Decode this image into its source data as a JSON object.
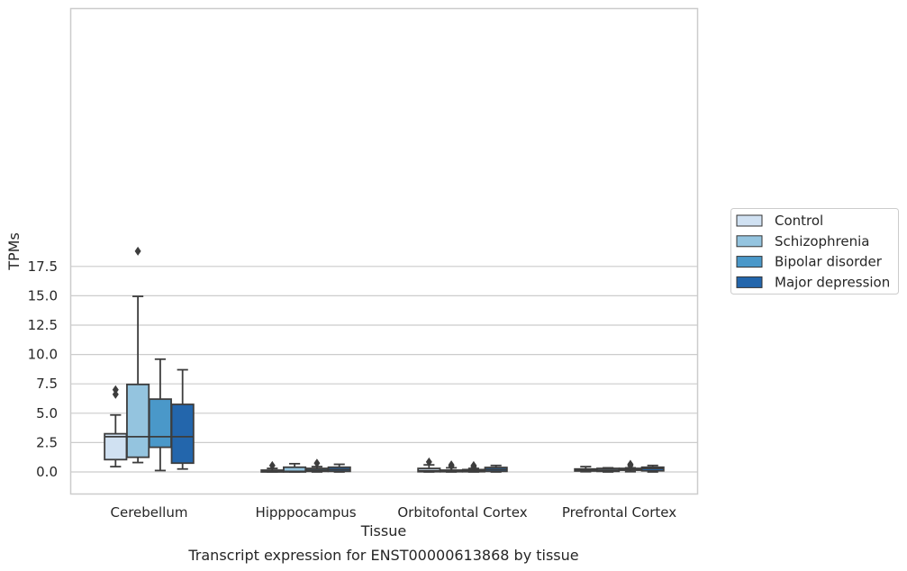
{
  "chart_data": {
    "type": "box",
    "xlabel": "Tissue",
    "ylabel": "TPMs",
    "caption": "Transcript expression for ENST00000613868 by tissue",
    "ylim": [
      -0.95,
      19.7
    ],
    "yticks": [
      0.0,
      2.5,
      5.0,
      7.5,
      10.0,
      12.5,
      15.0,
      17.5
    ],
    "ytick_labels": [
      "0.0",
      "2.5",
      "5.0",
      "7.5",
      "10.0",
      "12.5",
      "15.0",
      "17.5"
    ],
    "grid": "horizontal",
    "legend_position": "right",
    "categories": [
      "Cerebellum",
      "Hipppocampus",
      "Orbitofontal Cortex",
      "Prefrontal Cortex"
    ],
    "series": [
      {
        "name": "Control",
        "color": "#d0e1f2",
        "boxes": [
          {
            "whislo": 0.45,
            "q1": 1.05,
            "med": 3.0,
            "q3": 3.25,
            "whishi": 4.85,
            "fliers": [
              6.6,
              7.0
            ]
          },
          {
            "whislo": 0.0,
            "q1": 0.0,
            "med": 0.05,
            "q3": 0.15,
            "whishi": 0.3,
            "fliers": [
              0.55
            ]
          },
          {
            "whislo": 0.0,
            "q1": 0.02,
            "med": 0.1,
            "q3": 0.3,
            "whishi": 0.6,
            "fliers": [
              0.85
            ]
          },
          {
            "whislo": 0.02,
            "q1": 0.08,
            "med": 0.15,
            "q3": 0.25,
            "whishi": 0.45,
            "fliers": []
          }
        ]
      },
      {
        "name": "Schizophrenia",
        "color": "#94c4df",
        "boxes": [
          {
            "whislo": 0.8,
            "q1": 1.25,
            "med": 3.0,
            "q3": 7.45,
            "whishi": 14.95,
            "fliers": [
              18.8
            ]
          },
          {
            "whislo": 0.0,
            "q1": 0.0,
            "med": 0.05,
            "q3": 0.4,
            "whishi": 0.7,
            "fliers": []
          },
          {
            "whislo": 0.0,
            "q1": 0.02,
            "med": 0.08,
            "q3": 0.15,
            "whishi": 0.35,
            "fliers": [
              0.5,
              0.6
            ]
          },
          {
            "whislo": 0.0,
            "q1": 0.05,
            "med": 0.15,
            "q3": 0.3,
            "whishi": 0.35,
            "fliers": []
          }
        ]
      },
      {
        "name": "Bipolar disorder",
        "color": "#4a98c9",
        "boxes": [
          {
            "whislo": 0.12,
            "q1": 2.1,
            "med": 3.0,
            "q3": 6.2,
            "whishi": 9.6,
            "fliers": []
          },
          {
            "whislo": 0.0,
            "q1": 0.05,
            "med": 0.15,
            "q3": 0.3,
            "whishi": 0.45,
            "fliers": [
              0.75
            ]
          },
          {
            "whislo": 0.0,
            "q1": 0.02,
            "med": 0.08,
            "q3": 0.2,
            "whishi": 0.3,
            "fliers": [
              0.45,
              0.55
            ]
          },
          {
            "whislo": 0.02,
            "q1": 0.15,
            "med": 0.2,
            "q3": 0.3,
            "whishi": 0.35,
            "fliers": [
              0.55,
              0.65
            ]
          }
        ]
      },
      {
        "name": "Major depression",
        "color": "#2366ac",
        "boxes": [
          {
            "whislo": 0.25,
            "q1": 0.75,
            "med": 3.0,
            "q3": 5.75,
            "whishi": 8.7,
            "fliers": []
          },
          {
            "whislo": 0.0,
            "q1": 0.05,
            "med": 0.2,
            "q3": 0.4,
            "whishi": 0.65,
            "fliers": []
          },
          {
            "whislo": 0.0,
            "q1": 0.05,
            "med": 0.2,
            "q3": 0.38,
            "whishi": 0.55,
            "fliers": []
          },
          {
            "whislo": 0.0,
            "q1": 0.1,
            "med": 0.3,
            "q3": 0.4,
            "whishi": 0.55,
            "fliers": []
          }
        ]
      }
    ],
    "colors": {
      "grid": "#cccccc",
      "spine": "#cccccc",
      "box_edge": "#3d3d3d",
      "text": "#262626"
    }
  }
}
